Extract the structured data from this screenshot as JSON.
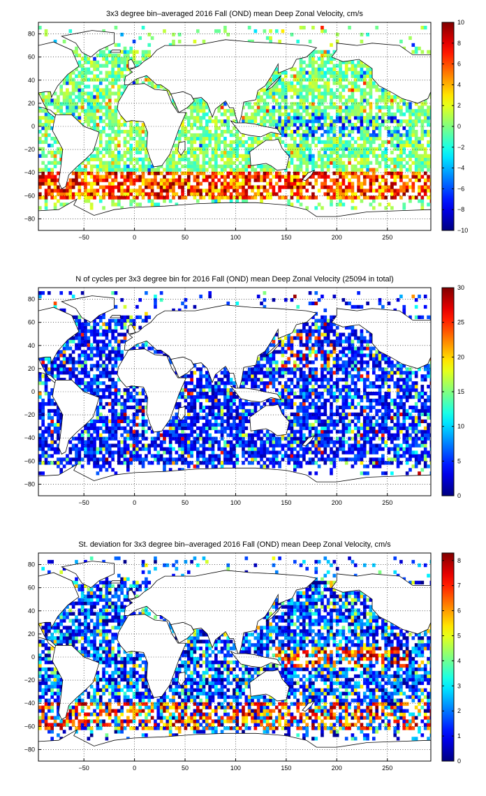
{
  "palette": {
    "frame": "#000000",
    "grid": "#000000",
    "land_outline": "#000000",
    "background": "#ffffff",
    "colormap": "jet"
  },
  "chart_data": [
    {
      "type": "heatmap",
      "title": "3x3 degree bin–averaged 2016 Fall (OND) mean Deep Zonal Velocity, cm/s",
      "x_ticks": [
        -50,
        0,
        50,
        100,
        150,
        200,
        250
      ],
      "y_ticks": [
        80,
        60,
        40,
        20,
        0,
        -20,
        -40,
        -60,
        -80
      ],
      "xlim": [
        -95,
        293
      ],
      "ylim": [
        -90,
        90
      ],
      "bin_size_deg": 3,
      "grid": "dotted",
      "colorbar": {
        "ticks": [
          10,
          8,
          6,
          4,
          2,
          0,
          -2,
          -4,
          -6,
          -8,
          -10
        ],
        "range": [
          -10,
          10
        ],
        "colormap": "jet"
      },
      "pattern": "mostly near 0 (green/cyan) worldwide; strong eastward (red, 6–10) band along 45–60S (Antarctic Circumpolar Current); scattered westward (blue) bins in tropics"
    },
    {
      "type": "heatmap",
      "title": "N of cycles per 3x3 degree bin for 2016 Fall (OND) mean Deep Zonal Velocity (25094 in total)",
      "x_ticks": [
        -50,
        0,
        50,
        100,
        150,
        200,
        250
      ],
      "y_ticks": [
        80,
        60,
        40,
        20,
        0,
        -20,
        -40,
        -60,
        -80
      ],
      "xlim": [
        -95,
        293
      ],
      "ylim": [
        -90,
        90
      ],
      "bin_size_deg": 3,
      "grid": "dotted",
      "colorbar": {
        "ticks": [
          30,
          25,
          20,
          15,
          10,
          5,
          0
        ],
        "range": [
          0,
          30
        ],
        "colormap": "jet"
      },
      "pattern": "mostly 1–7 cycles per bin (blue); higher counts (yellow/red) scattered in NW Pacific and Southern Ocean"
    },
    {
      "type": "heatmap",
      "title": "St. deviation for 3x3 degree bin–averaged 2016 Fall (OND) mean Deep Zonal Velocity, cm/s",
      "x_ticks": [
        -50,
        0,
        50,
        100,
        150,
        200,
        250
      ],
      "y_ticks": [
        80,
        60,
        40,
        20,
        0,
        -20,
        -40,
        -60,
        -80
      ],
      "xlim": [
        -95,
        293
      ],
      "ylim": [
        -90,
        90
      ],
      "bin_size_deg": 3,
      "grid": "dotted",
      "colorbar": {
        "ticks": [
          8,
          7,
          6,
          5,
          4,
          3,
          2,
          1,
          0
        ],
        "range": [
          0,
          8.3
        ],
        "colormap": "jet"
      },
      "pattern": "mostly 0–3 cm/s (blue/cyan); high variability (red, 6–8) along 40–60S and along the equatorial Pacific band"
    }
  ]
}
